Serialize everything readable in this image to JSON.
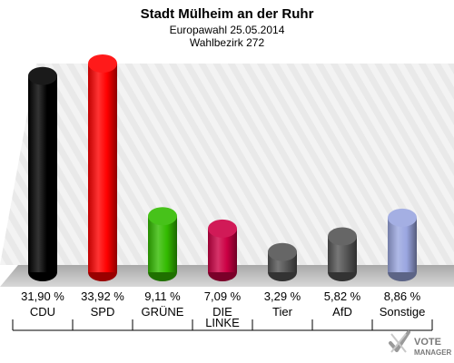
{
  "header": {
    "title": "Stadt Mülheim an der Ruhr",
    "subtitle": "Europawahl 25.05.2014",
    "district": "Wahlbezirk 272"
  },
  "logo": {
    "line1": "VOTE",
    "line2": "MANAGER"
  },
  "chart_data": {
    "type": "bar",
    "title": "Stadt Mülheim an der Ruhr",
    "subtitle": "Europawahl 25.05.2014 / Wahlbezirk 272",
    "categories": [
      "CDU",
      "SPD",
      "GRÜNE",
      "DIE LINKE",
      "Tier",
      "AfD",
      "Sonstige"
    ],
    "category_lines": [
      [
        "CDU"
      ],
      [
        "SPD"
      ],
      [
        "GRÜNE"
      ],
      [
        "DIE",
        "LINKE"
      ],
      [
        "Tier"
      ],
      [
        "AfD"
      ],
      [
        "Sonstige"
      ]
    ],
    "values": [
      31.9,
      33.92,
      9.11,
      7.09,
      3.29,
      5.82,
      8.86
    ],
    "value_labels": [
      "31,90 %",
      "33,92 %",
      "9,11 %",
      "7,09 %",
      "3,29 %",
      "5,82 %",
      "8,86 %"
    ],
    "colors": [
      "#000000",
      "#ff0000",
      "#33bb00",
      "#cc0044",
      "#555555",
      "#555555",
      "#9aa6e0"
    ],
    "unit": "%",
    "xlabel": "",
    "ylabel": "",
    "grid": false,
    "legend": "none"
  }
}
